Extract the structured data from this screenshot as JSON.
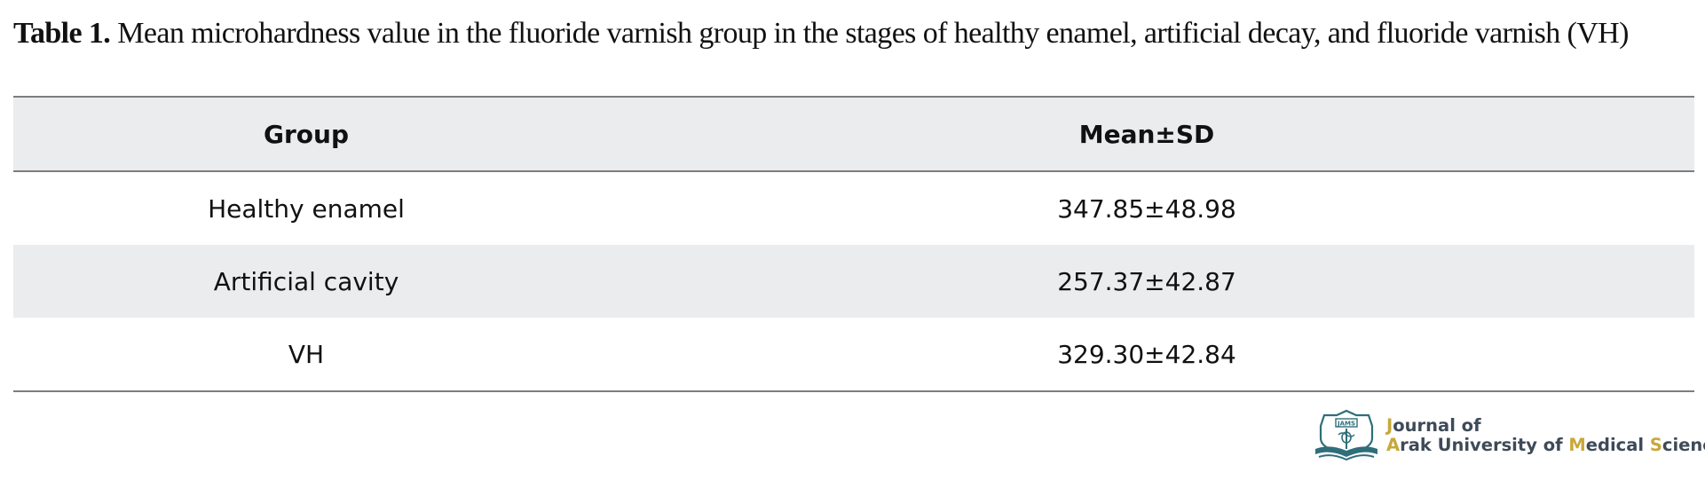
{
  "caption": {
    "label": "Table 1.",
    "text": "Mean microhardness value in the fluoride varnish group in the stages of healthy enamel, artificial decay, and fluoride varnish (VH)"
  },
  "table": {
    "headers": [
      "Group",
      "Mean±SD"
    ],
    "rows": [
      {
        "group": "Healthy enamel",
        "mean_sd": "347.85±48.98"
      },
      {
        "group": "Artificial cavity",
        "mean_sd": "257.37±42.87"
      },
      {
        "group": "VH",
        "mean_sd": "329.30±42.84"
      }
    ]
  },
  "logo": {
    "emblem_text": "JAMS",
    "line1_initial": "J",
    "line1_rest": "ournal of",
    "line2_a": "A",
    "line2_a_rest": "rak University of ",
    "line2_m": "M",
    "line2_m_rest": "edical ",
    "line2_s": "S",
    "line2_s_rest": "ciences",
    "colors": {
      "text": "#3e4a58",
      "highlight": "#c8a83a",
      "emblem": "#2f6e7a"
    }
  }
}
